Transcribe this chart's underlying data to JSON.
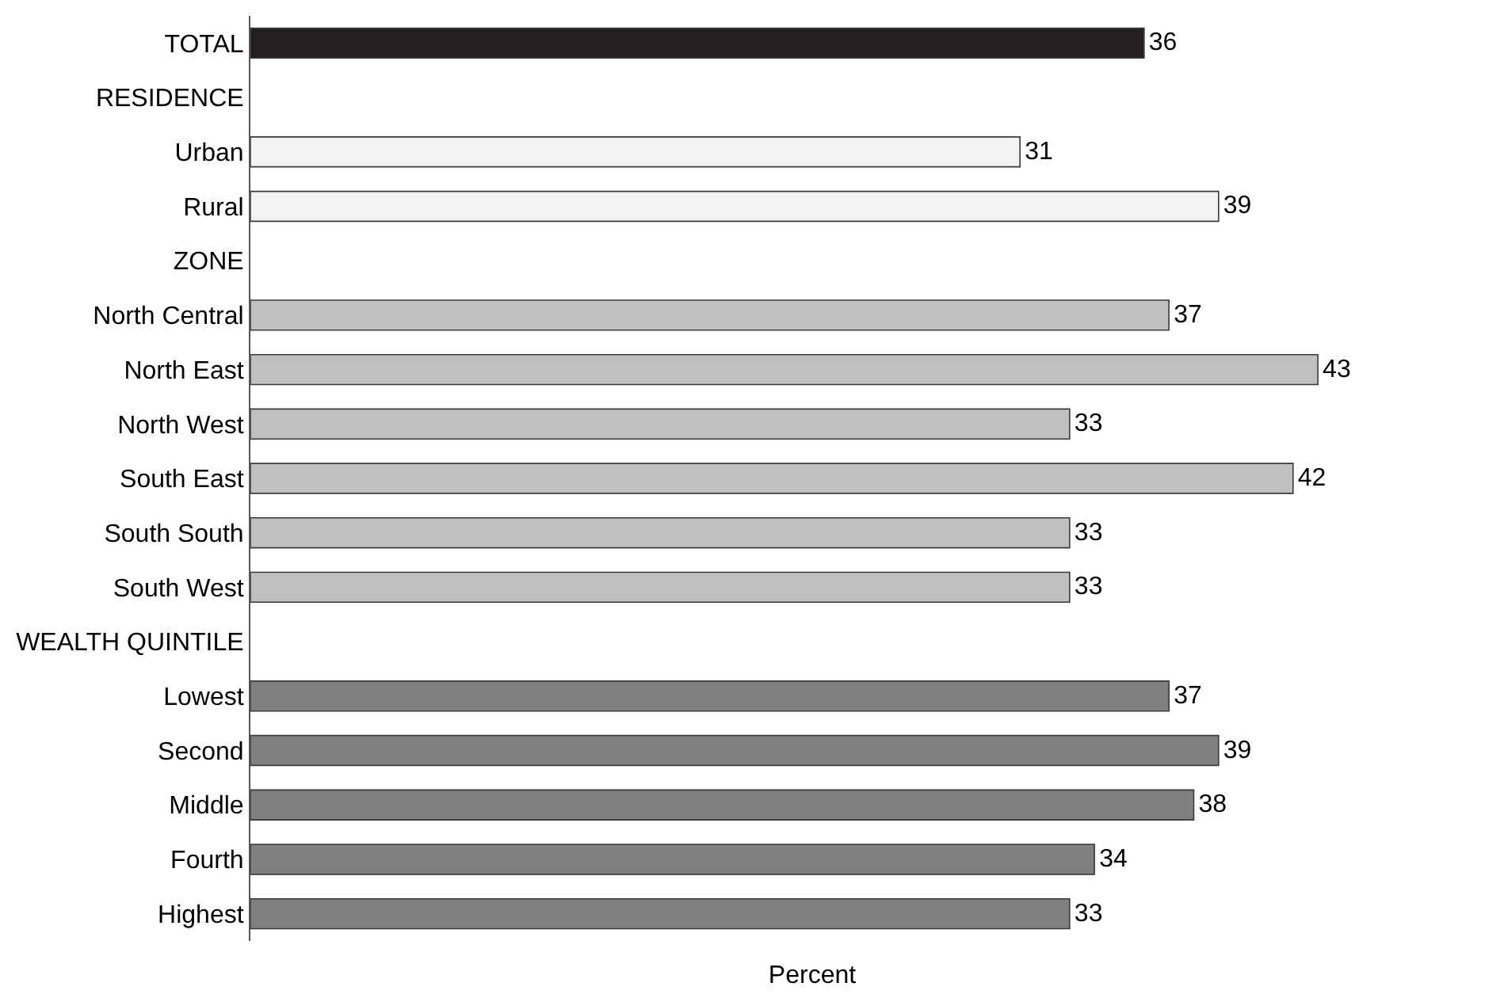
{
  "chart_data": {
    "type": "bar",
    "orientation": "horizontal",
    "xlabel": "Percent",
    "categories": [
      "TOTAL",
      "RESIDENCE",
      "Urban",
      "Rural",
      "ZONE",
      "North Central",
      "North East",
      "North West",
      "South East",
      "South South",
      "South West",
      "WEALTH QUINTILE",
      "Lowest",
      "Second",
      "Middle",
      "Fourth",
      "Highest"
    ],
    "values": [
      36,
      null,
      31,
      39,
      null,
      37,
      43,
      33,
      42,
      33,
      33,
      null,
      37,
      39,
      38,
      34,
      33
    ],
    "colors": [
      "#231f20",
      "#ffffff",
      "#f2f2f2",
      "#f2f2f2",
      "#ffffff",
      "#c0c0c2",
      "#c0c0c2",
      "#c0c0c2",
      "#c0c0c2",
      "#c0c0c2",
      "#c0c0c2",
      "#ffffff",
      "#808083",
      "#808083",
      "#808083",
      "#808083",
      "#808083"
    ],
    "data_labels": true
  }
}
